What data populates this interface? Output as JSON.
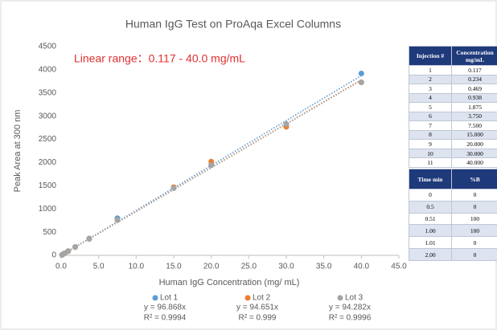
{
  "chart_data": {
    "type": "scatter",
    "title": "Human IgG Test on ProAqa Excel Columns",
    "annotation": "Linear range：0.117 - 40.0 mg/mL",
    "x_label": "Human IgG Concentration (mg/ mL)",
    "y_label": "Peak Area at 300 nm",
    "x": [
      0.117,
      0.234,
      0.469,
      0.938,
      1.875,
      3.75,
      7.5,
      15,
      20,
      30,
      40
    ],
    "series": [
      {
        "name": "Lot 1",
        "color": "#5b9bd5",
        "values": [
          11,
          23,
          45,
          91,
          182,
          363,
          800,
          1450,
          1950,
          2830,
          3920
        ],
        "trendline": {
          "value": 96.868,
          "label": "y = 96.868x"
        },
        "r2": "R² = 0.9994"
      },
      {
        "name": "Lot 2",
        "color": "#ed7d31",
        "values": [
          11,
          22,
          44,
          89,
          177,
          355,
          760,
          1470,
          2020,
          2770,
          3730
        ],
        "trendline": {
          "value": 94.651,
          "label": "y = 94.651x"
        },
        "r2": "R² = 0.999"
      },
      {
        "name": "Lot 3",
        "color": "#a5a5a5",
        "values": [
          11,
          22,
          44,
          88,
          177,
          354,
          760,
          1450,
          1940,
          2830,
          3730
        ],
        "trendline": {
          "value": 94.282,
          "label": "y = 94.282x"
        },
        "r2": "R² = 0.9996"
      }
    ],
    "xlim": [
      0,
      45
    ],
    "ylim": [
      0,
      4500
    ],
    "xticks": [
      {
        "value": 0,
        "label": "0.0"
      },
      {
        "value": 5,
        "label": "5.0"
      },
      {
        "value": 10,
        "label": "10.0"
      },
      {
        "value": 15,
        "label": "15.0"
      },
      {
        "value": 20,
        "label": "20.0"
      },
      {
        "value": 25,
        "label": "25.0"
      },
      {
        "value": 30,
        "label": "30.0"
      },
      {
        "value": 35,
        "label": "35.0"
      },
      {
        "value": 40,
        "label": "40.0"
      },
      {
        "value": 45,
        "label": "45.0"
      }
    ],
    "yticks": [
      0,
      500,
      1000,
      1500,
      2000,
      2500,
      3000,
      3500,
      4000,
      4500
    ],
    "grid": false,
    "legend": "bottom"
  },
  "tables": [
    {
      "columns": [
        "Injection #",
        "Concentration mg/mL"
      ],
      "rows": [
        [
          "1",
          "0.117"
        ],
        [
          "2",
          "0.234"
        ],
        [
          "3",
          "0.469"
        ],
        [
          "4",
          "0.938"
        ],
        [
          "5",
          "1.875"
        ],
        [
          "6",
          "3.750"
        ],
        [
          "7",
          "7.500"
        ],
        [
          "8",
          "15.000"
        ],
        [
          "9",
          "20.000"
        ],
        [
          "10",
          "30.000"
        ],
        [
          "11",
          "40.000"
        ]
      ]
    },
    {
      "columns": [
        "Time min",
        "%B"
      ],
      "rows": [
        [
          "0",
          "0"
        ],
        [
          "0.5",
          "0"
        ],
        [
          "0.51",
          "100"
        ],
        [
          "1.00",
          "100"
        ],
        [
          "1.01",
          "0"
        ],
        [
          "2.00",
          "0"
        ]
      ]
    }
  ]
}
